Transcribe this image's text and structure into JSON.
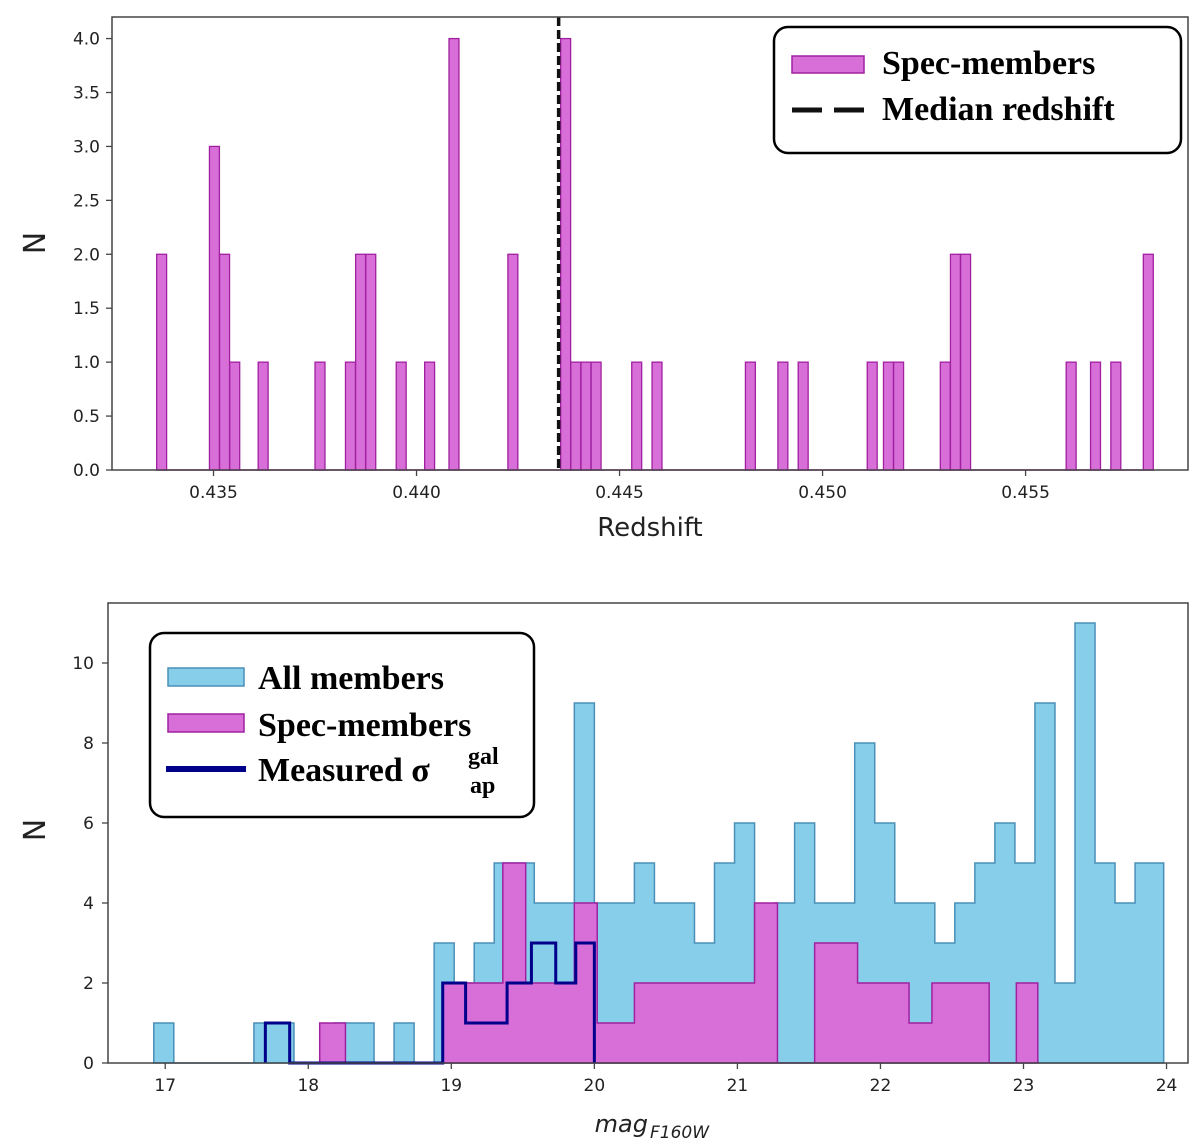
{
  "colors": {
    "magenta_fill": "#d86fd8",
    "magenta_edge": "#a020a0",
    "blue_fill": "#87ceeb",
    "blue_edge": "#4a8fb8",
    "navy": "#00008b",
    "median": "#111111"
  },
  "chart_data": [
    {
      "type": "bar",
      "title": "",
      "xlabel": "Redshift",
      "ylabel": "N",
      "xlim": [
        0.4325,
        0.459
      ],
      "ylim": [
        0,
        4.2
      ],
      "xticks": [
        0.435,
        0.44,
        0.445,
        0.45,
        0.455
      ],
      "xtick_labels": [
        "0.435",
        "0.440",
        "0.445",
        "0.450",
        "0.455"
      ],
      "yticks": [
        0.0,
        0.5,
        1.0,
        1.5,
        2.0,
        2.5,
        3.0,
        3.5,
        4.0
      ],
      "ytick_labels": [
        "0.0",
        "0.5",
        "1.0",
        "1.5",
        "2.0",
        "2.5",
        "3.0",
        "3.5",
        "4.0"
      ],
      "bin_width": 0.000245,
      "series": [
        {
          "name": "Spec-members",
          "bins": [
            [
              0.4336,
              2
            ],
            [
              0.4349,
              3
            ],
            [
              0.43515,
              2
            ],
            [
              0.4354,
              1
            ],
            [
              0.4361,
              1
            ],
            [
              0.4375,
              1
            ],
            [
              0.43825,
              1
            ],
            [
              0.4385,
              2
            ],
            [
              0.43875,
              2
            ],
            [
              0.4395,
              1
            ],
            [
              0.4402,
              1
            ],
            [
              0.4408,
              4
            ],
            [
              0.44225,
              2
            ],
            [
              0.44355,
              4
            ],
            [
              0.4438,
              1
            ],
            [
              0.44405,
              1
            ],
            [
              0.4443,
              1
            ],
            [
              0.4453,
              1
            ],
            [
              0.4458,
              1
            ],
            [
              0.4481,
              1
            ],
            [
              0.4489,
              1
            ],
            [
              0.4494,
              1
            ],
            [
              0.4511,
              1
            ],
            [
              0.4515,
              1
            ],
            [
              0.45175,
              1
            ],
            [
              0.4529,
              1
            ],
            [
              0.45315,
              2
            ],
            [
              0.4534,
              2
            ],
            [
              0.456,
              1
            ],
            [
              0.4566,
              1
            ],
            [
              0.4571,
              1
            ],
            [
              0.4579,
              2
            ]
          ]
        }
      ],
      "median_redshift": 0.4435,
      "legend": {
        "location": "upper right",
        "entries": [
          "Spec-members",
          "Median redshift"
        ]
      }
    },
    {
      "type": "bar",
      "title": "",
      "xlabel": "mag",
      "xlabel_subscript": "F160W",
      "ylabel": "N",
      "xlim": [
        16.6,
        24.15
      ],
      "ylim": [
        0,
        11.5
      ],
      "xticks": [
        17,
        18,
        19,
        20,
        21,
        22,
        23,
        24
      ],
      "xtick_labels": [
        "17",
        "18",
        "19",
        "20",
        "21",
        "22",
        "23",
        "24"
      ],
      "yticks": [
        0,
        2,
        4,
        6,
        8,
        10
      ],
      "ytick_labels": [
        "0",
        "2",
        "4",
        "6",
        "8",
        "10"
      ],
      "series": [
        {
          "name": "All members",
          "edges": [
            16.92,
            17.06,
            17.33,
            17.62,
            17.76,
            17.9,
            18.04,
            18.18,
            18.32,
            18.46,
            18.6,
            18.74,
            18.88,
            19.02,
            19.16,
            19.3,
            19.44,
            19.58,
            19.72,
            19.86,
            20.0,
            20.14,
            20.28,
            20.42,
            20.56,
            20.7,
            20.84,
            20.98,
            21.12,
            21.26,
            21.4,
            21.54,
            21.68,
            21.82,
            21.96,
            22.1,
            22.24,
            22.38,
            22.52,
            22.66,
            22.8,
            22.94,
            23.08,
            23.22,
            23.36,
            23.5,
            23.64,
            23.78,
            23.98
          ],
          "values": [
            1,
            0,
            0,
            1,
            1,
            0,
            0,
            1,
            1,
            0,
            1,
            0,
            3,
            2,
            3,
            5,
            5,
            4,
            4,
            9,
            4,
            4,
            5,
            4,
            4,
            3,
            5,
            6,
            1,
            4,
            6,
            4,
            4,
            8,
            6,
            4,
            4,
            3,
            4,
            5,
            6,
            5,
            9,
            2,
            11,
            5,
            4,
            5
          ]
        },
        {
          "name": "Spec-members",
          "edges": [
            18.08,
            18.26,
            18.94,
            19.36,
            19.52,
            19.86,
            20.02,
            20.28,
            20.56,
            20.84,
            21.12,
            21.28,
            21.54,
            21.84,
            22.2,
            22.36,
            22.76,
            22.95,
            23.1
          ],
          "values": [
            1,
            0,
            2,
            5,
            2,
            4,
            1,
            2,
            2,
            2,
            4,
            0,
            3,
            2,
            1,
            2,
            0,
            2
          ]
        },
        {
          "name": "Measured σ_ap^gal",
          "edges": [
            17.7,
            17.87,
            18.94,
            19.1,
            19.39,
            19.56,
            19.73,
            19.87,
            19.99,
            20.0
          ],
          "values": [
            1,
            0,
            2,
            1,
            2,
            3,
            2,
            3,
            3
          ]
        }
      ],
      "legend": {
        "location": "upper left",
        "entries": [
          "All members",
          "Spec-members",
          "Measured σ",
          "gal",
          "ap"
        ]
      }
    }
  ]
}
